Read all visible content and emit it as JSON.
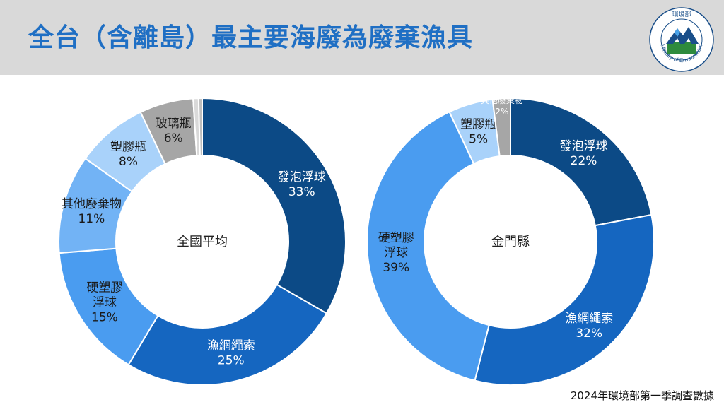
{
  "header": {
    "title": "全台（含離島）最主要海廢為廢棄漁具",
    "logo_top_text": "環境部",
    "logo_ring_text": "Ministry of Environment"
  },
  "colors": {
    "foam_floats": "#0c4a86",
    "fishing_nets_ropes": "#1566c0",
    "hard_plastic_floats": "#4a9cf0",
    "other_waste": "#72b3f5",
    "plastic_bottles": "#a9d2fa",
    "glass_bottles": "#a6a6a6",
    "other_small": "#d9d9d9",
    "header_bg": "#d9d9d9",
    "title_color": "#1f6fc4"
  },
  "chart_data": [
    {
      "type": "pie",
      "variant": "donut",
      "center_label": "全國平均",
      "slices": [
        {
          "label": "發泡浮球",
          "value": 33,
          "display": "33%",
          "color": "#0c4a86",
          "label_color": "#ffffff"
        },
        {
          "label": "漁網繩索",
          "value": 25,
          "display": "25%",
          "color": "#1566c0",
          "label_color": "#ffffff"
        },
        {
          "label": "硬塑膠浮球",
          "value": 15,
          "display": "15%",
          "color": "#4a9cf0",
          "label_color": "#1a1a1a"
        },
        {
          "label": "其他廢棄物",
          "value": 11,
          "display": "11%",
          "color": "#72b3f5",
          "label_color": "#1a1a1a"
        },
        {
          "label": "塑膠瓶",
          "value": 8,
          "display": "8%",
          "color": "#a9d2fa",
          "label_color": "#1a1a1a"
        },
        {
          "label": "玻璃瓶",
          "value": 6,
          "display": "6%",
          "color": "#a6a6a6",
          "label_color": "#1a1a1a"
        },
        {
          "label": "",
          "value": 0.6,
          "display": "",
          "color": "#d9d9d9",
          "label_color": "#1a1a1a"
        },
        {
          "label": "",
          "value": 0.4,
          "display": "",
          "color": "#bfbfbf",
          "label_color": "#1a1a1a"
        }
      ]
    },
    {
      "type": "pie",
      "variant": "donut",
      "center_label": "金門縣",
      "slices": [
        {
          "label": "發泡浮球",
          "value": 22,
          "display": "22%",
          "color": "#0c4a86",
          "label_color": "#ffffff"
        },
        {
          "label": "漁網繩索",
          "value": 32,
          "display": "32%",
          "color": "#1566c0",
          "label_color": "#ffffff"
        },
        {
          "label": "硬塑膠浮球",
          "value": 39,
          "display": "39%",
          "color": "#4a9cf0",
          "label_color": "#1a1a1a"
        },
        {
          "label": "塑膠瓶",
          "value": 5,
          "display": "5%",
          "color": "#a9d2fa",
          "label_color": "#1a1a1a"
        },
        {
          "label": "其他廢棄物",
          "value": 2,
          "display": "2%",
          "color": "#a6a6a6",
          "label_color": "#ffffff"
        }
      ]
    }
  ],
  "footer": {
    "source": "2024年環境部第一季調查數據"
  }
}
